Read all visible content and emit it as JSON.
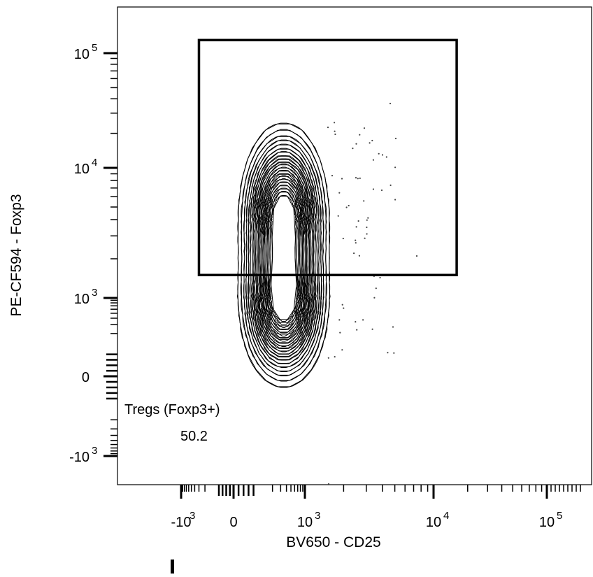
{
  "chart_data": {
    "type": "contour",
    "xlabel": "BV650 - CD25",
    "ylabel": "PE-CF594 - Foxp3",
    "x_scale": "biexponential",
    "y_scale": "biexponential",
    "x_ticks": [
      {
        "value": -1000,
        "base": "-10",
        "exp": "3"
      },
      {
        "value": 0,
        "base": "0",
        "exp": ""
      },
      {
        "value": 1000,
        "base": "10",
        "exp": "3"
      },
      {
        "value": 10000,
        "base": "10",
        "exp": "4"
      },
      {
        "value": 100000,
        "base": "10",
        "exp": "5"
      }
    ],
    "y_ticks": [
      {
        "value": 100000,
        "base": "10",
        "exp": "5"
      },
      {
        "value": 10000,
        "base": "10",
        "exp": "4"
      },
      {
        "value": 1000,
        "base": "10",
        "exp": "3"
      },
      {
        "value": 0,
        "base": "0",
        "exp": ""
      },
      {
        "value": -1000,
        "base": "-10",
        "exp": "3"
      }
    ],
    "populations": [
      {
        "x_center": 350,
        "y_center": 4500
      },
      {
        "x_center": 350,
        "y_center": 800
      }
    ],
    "gate": {
      "name": "Tregs (Foxp3+)",
      "percent": "50.2",
      "x_range": [
        -300,
        16000
      ],
      "y_range": [
        1500,
        130000
      ]
    }
  }
}
